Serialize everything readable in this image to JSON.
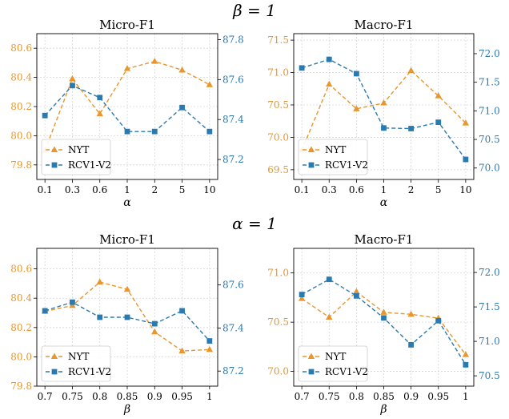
{
  "group_titles": [
    "β = 1",
    "α = 1"
  ],
  "colors": {
    "NYT": "#e8962e",
    "RCV1-V2": "#2a7ab0"
  },
  "chart_data": [
    {
      "type": "line",
      "title": "Micro-F1",
      "xlabel": "α",
      "categories": [
        "0.1",
        "0.3",
        "0.6",
        "1",
        "2",
        "5",
        "10"
      ],
      "left_ylim": [
        79.7,
        80.7
      ],
      "left_yticks": [
        "79.8",
        "80.0",
        "80.2",
        "80.4",
        "80.6"
      ],
      "right_ylim": [
        87.1,
        87.83
      ],
      "right_yticks": [
        "87.2",
        "87.4",
        "87.6",
        "87.8"
      ],
      "legend": "lower-left",
      "grid": true,
      "series": [
        {
          "name": "NYT",
          "axis": "left",
          "marker": "triangle",
          "values": [
            79.9,
            80.39,
            80.15,
            80.46,
            80.51,
            80.45,
            80.35
          ]
        },
        {
          "name": "RCV1-V2",
          "axis": "right",
          "marker": "square",
          "values": [
            87.42,
            87.57,
            87.51,
            87.34,
            87.34,
            87.46,
            87.34
          ]
        }
      ]
    },
    {
      "type": "line",
      "title": "Macro-F1",
      "xlabel": "α",
      "categories": [
        "0.1",
        "0.3",
        "0.6",
        "1",
        "2",
        "5",
        "10"
      ],
      "left_ylim": [
        69.35,
        71.6
      ],
      "left_yticks": [
        "69.5",
        "70.0",
        "70.5",
        "71.0",
        "71.5"
      ],
      "right_ylim": [
        69.8,
        72.35
      ],
      "right_yticks": [
        "70.0",
        "70.5",
        "71.0",
        "71.5",
        "72.0"
      ],
      "legend": "lower-left",
      "grid": true,
      "series": [
        {
          "name": "NYT",
          "axis": "left",
          "marker": "triangle",
          "values": [
            69.8,
            70.82,
            70.44,
            70.53,
            71.03,
            70.64,
            70.22
          ]
        },
        {
          "name": "RCV1-V2",
          "axis": "right",
          "marker": "square",
          "values": [
            71.75,
            71.9,
            71.65,
            70.7,
            70.69,
            70.8,
            70.15
          ]
        }
      ]
    },
    {
      "type": "line",
      "title": "Micro-F1",
      "xlabel": "β",
      "categories": [
        "0.7",
        "0.75",
        "0.8",
        "0.85",
        "0.9",
        "0.95",
        "1"
      ],
      "left_ylim": [
        79.8,
        80.74
      ],
      "left_yticks": [
        "79.8",
        "80.0",
        "80.2",
        "80.4",
        "80.6"
      ],
      "right_ylim": [
        87.13,
        87.77
      ],
      "right_yticks": [
        "87.2",
        "87.4",
        "87.6"
      ],
      "legend": "lower-left",
      "grid": true,
      "series": [
        {
          "name": "NYT",
          "axis": "left",
          "marker": "triangle",
          "values": [
            80.31,
            80.35,
            80.51,
            80.46,
            80.17,
            80.04,
            80.05
          ]
        },
        {
          "name": "RCV1-V2",
          "axis": "right",
          "marker": "square",
          "values": [
            87.48,
            87.52,
            87.45,
            87.45,
            87.42,
            87.48,
            87.34
          ]
        }
      ]
    },
    {
      "type": "line",
      "title": "Macro-F1",
      "xlabel": "β",
      "categories": [
        "0.7",
        "0.75",
        "0.8",
        "0.85",
        "0.9",
        "0.95",
        "1"
      ],
      "left_ylim": [
        69.85,
        71.25
      ],
      "left_yticks": [
        "70.0",
        "70.5",
        "71.0"
      ],
      "right_ylim": [
        70.35,
        72.35
      ],
      "right_yticks": [
        "70.5",
        "71.0",
        "71.5",
        "72.0"
      ],
      "legend": "lower-left",
      "grid": true,
      "series": [
        {
          "name": "NYT",
          "axis": "left",
          "marker": "triangle",
          "values": [
            70.74,
            70.55,
            70.81,
            70.6,
            70.58,
            70.54,
            70.17
          ]
        },
        {
          "name": "RCV1-V2",
          "axis": "right",
          "marker": "square",
          "values": [
            71.68,
            71.9,
            71.66,
            71.34,
            70.95,
            71.3,
            70.66
          ]
        }
      ]
    }
  ]
}
